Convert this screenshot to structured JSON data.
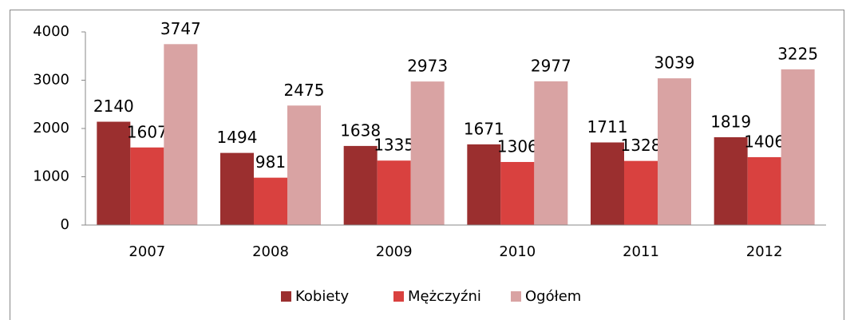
{
  "chart_data": {
    "type": "bar",
    "categories": [
      "2007",
      "2008",
      "2009",
      "2010",
      "2011",
      "2012"
    ],
    "series": [
      {
        "name": "Kobiety",
        "color": "#9b2f2f",
        "values": [
          2140,
          1494,
          1638,
          1671,
          1711,
          1819
        ]
      },
      {
        "name": "Mężczyźni",
        "color": "#d9413f",
        "values": [
          1607,
          981,
          1335,
          1306,
          1328,
          1406
        ]
      },
      {
        "name": "Ogółem",
        "color": "#d9a3a3",
        "values": [
          3747,
          2475,
          2973,
          2977,
          3039,
          3225
        ]
      }
    ],
    "ylim": [
      0,
      4000
    ],
    "yticks": [
      0,
      1000,
      2000,
      3000,
      4000
    ],
    "grid": false,
    "legend": "bottom"
  }
}
